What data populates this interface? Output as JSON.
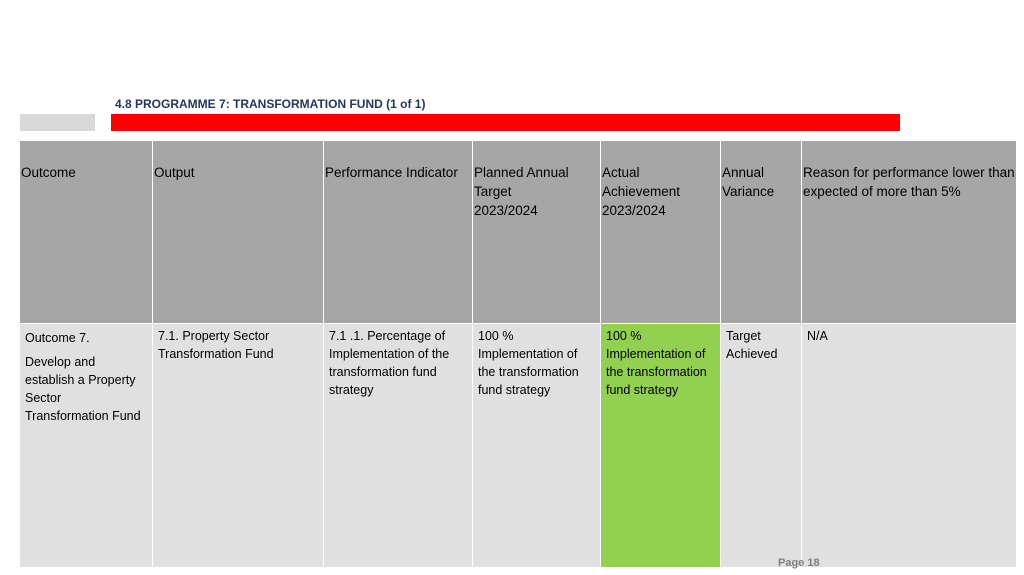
{
  "section": {
    "title": "4.8 PROGRAMME 7: TRANSFORMATION FUND (1 of 1)"
  },
  "table": {
    "headers": [
      "Outcome",
      "Output",
      "Performance Indicator",
      "Planned Annual\nTarget\n2023/2024",
      "Actual\nAchievement\n2023/2024",
      "Annual\nVariance",
      "Reason for performance lower than expected of more than 5%"
    ],
    "row": {
      "outcome_label": "Outcome 7.",
      "outcome_text": "Develop and establish a Property Sector Transformation Fund",
      "output": "7.1. Property Sector Transformation Fund",
      "indicator": "7.1 .1. Percentage of Implementation of the transformation fund strategy",
      "planned_target": "100 %\nImplementation of the transformation fund strategy",
      "actual_achievement": "100 %\nImplementation of the transformation fund strategy",
      "variance": "Target Achieved",
      "reason": "N/A"
    }
  },
  "footer": {
    "page": "Page 18"
  },
  "colors": {
    "header_bg": "#a6a6a6",
    "cell_bg": "#e0e0e0",
    "achieved_bg": "#92d050",
    "red_bar": "#ff0000",
    "title_color": "#1f3864"
  }
}
